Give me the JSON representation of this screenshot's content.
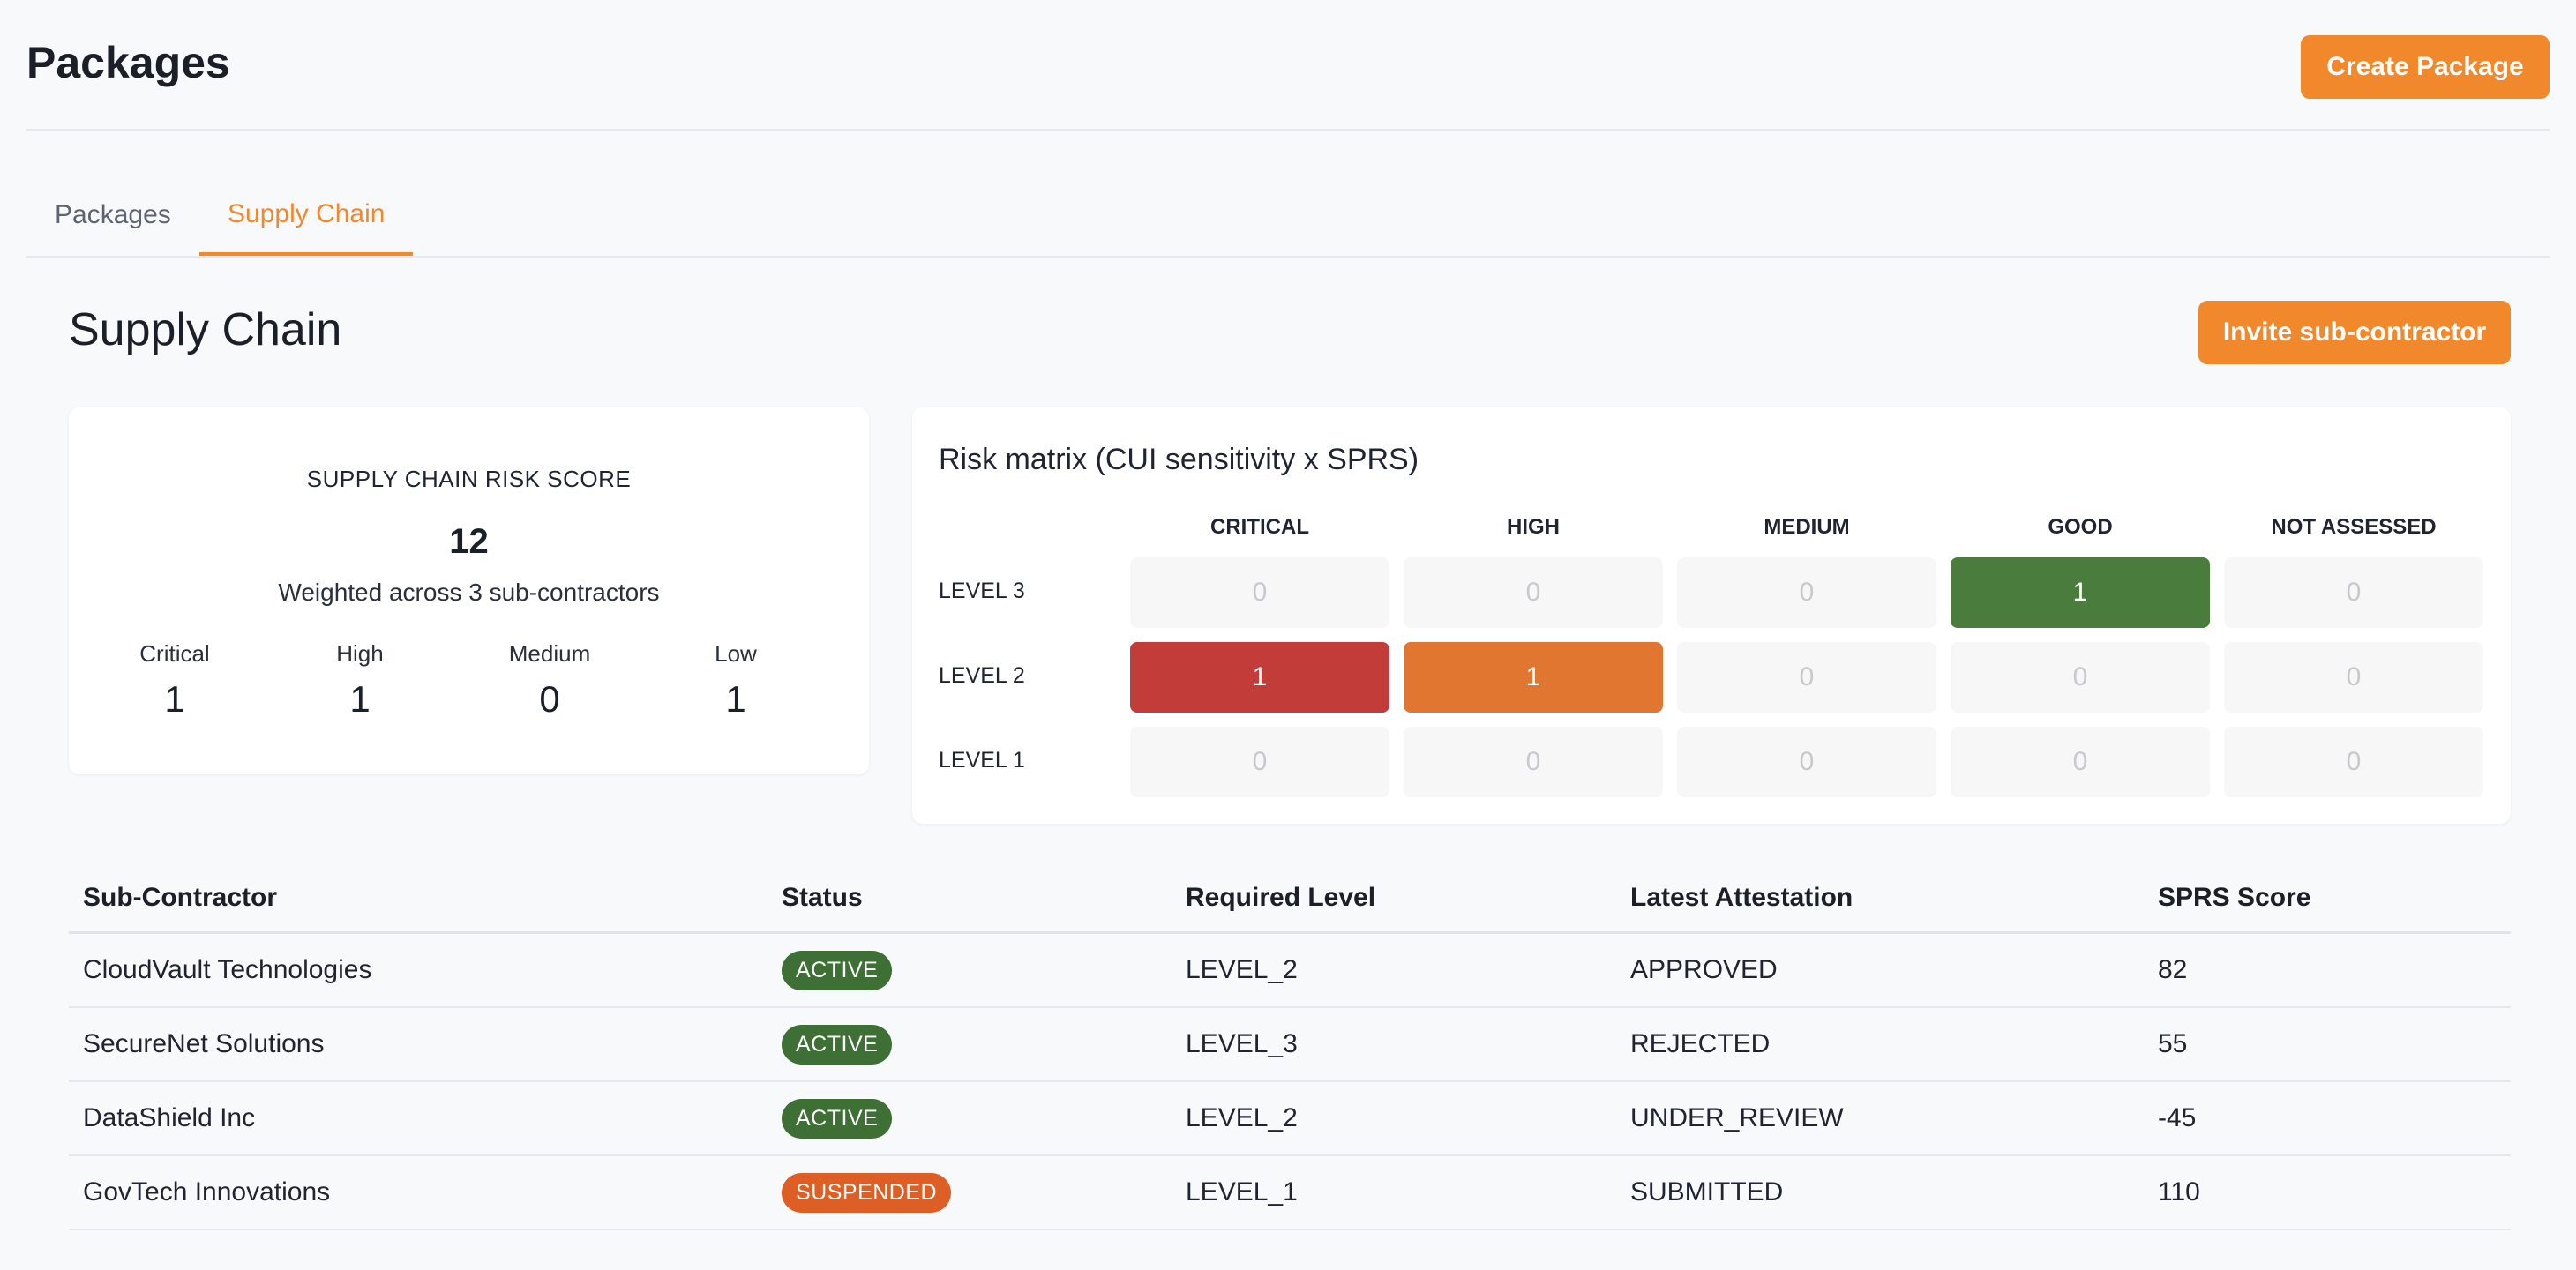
{
  "header": {
    "title": "Packages",
    "create_button": "Create Package"
  },
  "tabs": [
    {
      "label": "Packages",
      "active": false
    },
    {
      "label": "Supply Chain",
      "active": true
    }
  ],
  "section": {
    "title": "Supply Chain",
    "invite_button": "Invite sub-contractor"
  },
  "risk_score": {
    "heading": "SUPPLY CHAIN RISK SCORE",
    "value": "12",
    "subtitle": "Weighted across 3 sub-contractors",
    "stats": [
      {
        "label": "Critical",
        "value": "1"
      },
      {
        "label": "High",
        "value": "1"
      },
      {
        "label": "Medium",
        "value": "0"
      },
      {
        "label": "Low",
        "value": "1"
      }
    ]
  },
  "matrix": {
    "title": "Risk matrix (CUI sensitivity x SPRS)",
    "columns": [
      "CRITICAL",
      "HIGH",
      "MEDIUM",
      "GOOD",
      "NOT ASSESSED"
    ],
    "rows": [
      {
        "label": "LEVEL 3",
        "values": [
          "0",
          "0",
          "0",
          "1",
          "0"
        ]
      },
      {
        "label": "LEVEL 2",
        "values": [
          "1",
          "1",
          "0",
          "0",
          "0"
        ]
      },
      {
        "label": "LEVEL 1",
        "values": [
          "0",
          "0",
          "0",
          "0",
          "0"
        ]
      }
    ],
    "colors": {
      "critical": "#c23c3a",
      "high": "#e07630",
      "good": "#4a7d3d",
      "empty": "#f7f7f8"
    }
  },
  "table": {
    "headers": [
      "Sub-Contractor",
      "Status",
      "Required Level",
      "Latest Attestation",
      "SPRS Score"
    ],
    "rows": [
      {
        "name": "CloudVault Technologies",
        "status": "ACTIVE",
        "level": "LEVEL_2",
        "attestation": "APPROVED",
        "sprs": "82"
      },
      {
        "name": "SecureNet Solutions",
        "status": "ACTIVE",
        "level": "LEVEL_3",
        "attestation": "REJECTED",
        "sprs": "55"
      },
      {
        "name": "DataShield Inc",
        "status": "ACTIVE",
        "level": "LEVEL_2",
        "attestation": "UNDER_REVIEW",
        "sprs": "-45"
      },
      {
        "name": "GovTech Innovations",
        "status": "SUSPENDED",
        "level": "LEVEL_1",
        "attestation": "SUBMITTED",
        "sprs": "110"
      }
    ]
  },
  "colors": {
    "accent": "#f2882c",
    "active_badge": "#3e6f35",
    "suspended_badge": "#dd5f25"
  }
}
